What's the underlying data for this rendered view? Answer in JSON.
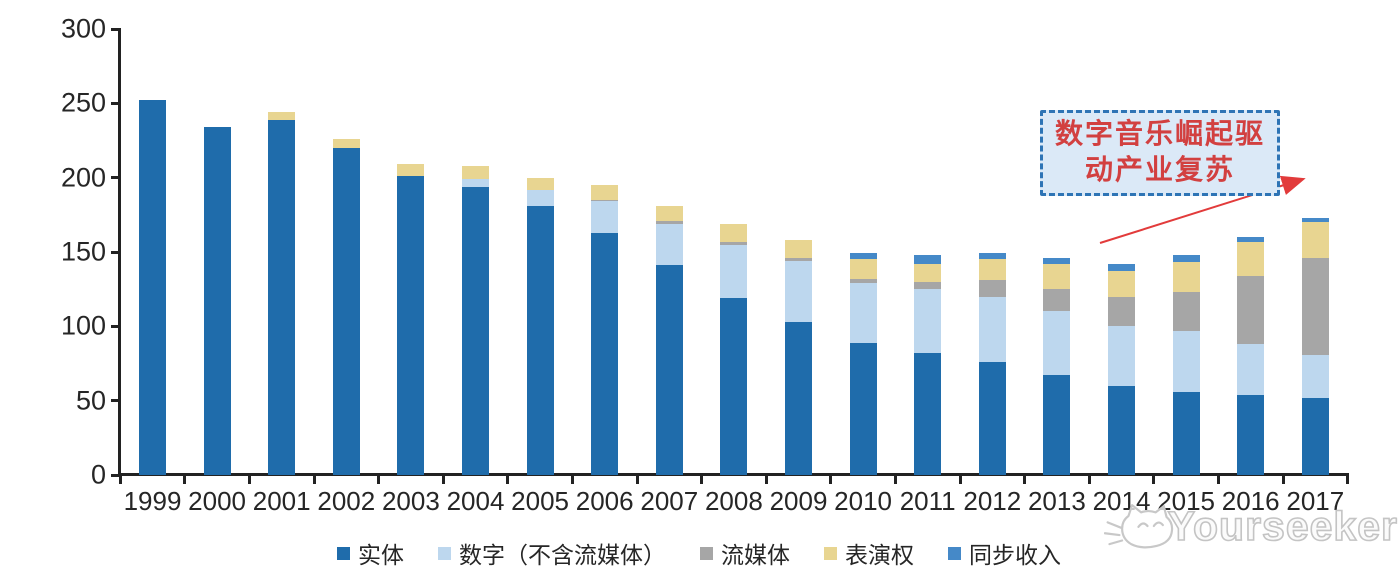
{
  "chart_data": {
    "type": "bar",
    "stacked": true,
    "title": "",
    "xlabel": "",
    "ylabel": "",
    "x": [
      "1999",
      "2000",
      "2001",
      "2002",
      "2003",
      "2004",
      "2005",
      "2006",
      "2007",
      "2008",
      "2009",
      "2010",
      "2011",
      "2012",
      "2013",
      "2014",
      "2015",
      "2016",
      "2017"
    ],
    "series": [
      {
        "id": "physical",
        "name": "实体",
        "color": "#1F6CAB",
        "values": [
          252,
          234,
          239,
          220,
          201,
          194,
          181,
          163,
          141,
          119,
          103,
          89,
          82,
          76,
          67,
          60,
          56,
          54,
          52
        ]
      },
      {
        "id": "digital-excl-streaming",
        "name": "数字（不含流媒体）",
        "color": "#BDD7EE",
        "values": [
          0,
          0,
          0,
          0,
          0,
          5,
          11,
          21,
          28,
          36,
          41,
          40,
          43,
          44,
          43,
          40,
          41,
          34,
          29
        ]
      },
      {
        "id": "streaming",
        "name": "流媒体",
        "color": "#A6A6A6",
        "values": [
          0,
          0,
          0,
          0,
          0,
          0,
          0,
          1,
          2,
          2,
          2,
          3,
          5,
          11,
          15,
          20,
          26,
          46,
          65
        ]
      },
      {
        "id": "performance-rights",
        "name": "表演权",
        "color": "#E8D591",
        "values": [
          0,
          0,
          5,
          6,
          8,
          9,
          8,
          10,
          10,
          12,
          12,
          13,
          12,
          14,
          17,
          17,
          20,
          23,
          24
        ]
      },
      {
        "id": "sync-revenue",
        "name": "同步收入",
        "color": "#4589C8",
        "values": [
          0,
          0,
          0,
          0,
          0,
          0,
          0,
          0,
          0,
          0,
          0,
          4,
          6,
          4,
          4,
          5,
          5,
          3,
          3
        ]
      }
    ],
    "ylim": [
      0,
      300
    ],
    "yticks": [
      0,
      50,
      100,
      150,
      200,
      250,
      300
    ],
    "grid": false,
    "legend_position": "bottom",
    "axis_color": "#222222"
  },
  "annotation": {
    "line1": "数字音乐崛起驱",
    "line2": "动产业复苏",
    "text_color": "#D24040",
    "border_color": "#2E74B5",
    "fill_color": "#DBE9F7",
    "arrow_color": "#E23B3B"
  },
  "watermark": {
    "brand": "Yourseeker",
    "color": "#C4C4C4"
  }
}
